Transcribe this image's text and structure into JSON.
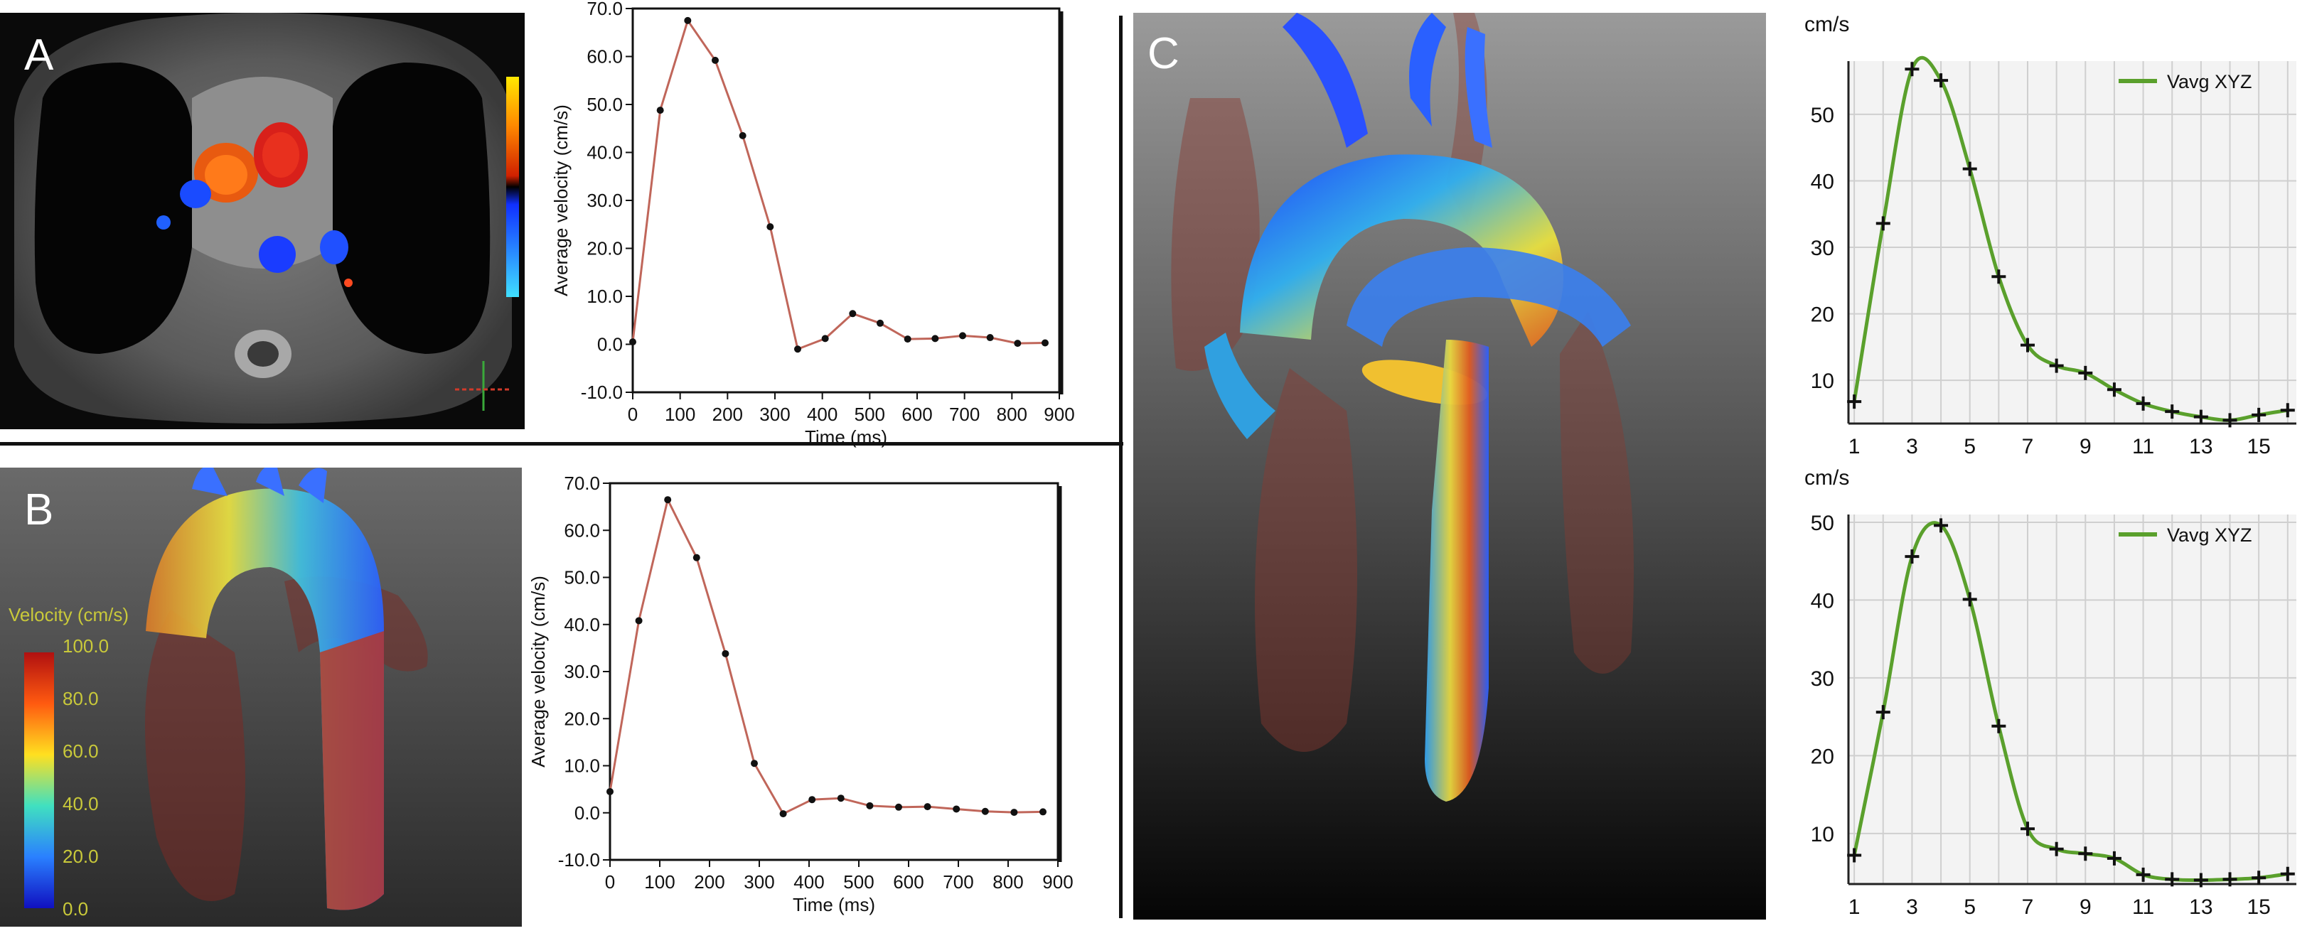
{
  "panels": {
    "A": {
      "letter": "A"
    },
    "B": {
      "letter": "B",
      "colorbar": {
        "title": "Velocity (cm/s)",
        "ticks": [
          "100.0",
          "80.0",
          "60.0",
          "40.0",
          "20.0",
          "0.0"
        ]
      }
    },
    "C": {
      "letter": "C"
    }
  },
  "colors": {
    "line_ab": "#c0665a",
    "marker_ab": "#111111",
    "line_c": "#5aa02c",
    "marker_c": "#111111",
    "grid_c": "#cfcfcf",
    "plot_bg_c": "#f3f3f3"
  },
  "chart_data": [
    {
      "id": "chartA",
      "type": "line",
      "xlabel": "Time (ms)",
      "ylabel": "Average velocity (cm/s)",
      "xlim": [
        0,
        900
      ],
      "ylim": [
        -10,
        70
      ],
      "xticks": [
        0,
        100,
        200,
        300,
        400,
        500,
        600,
        700,
        800,
        900
      ],
      "yticks": [
        -10,
        0,
        10,
        20,
        30,
        40,
        50,
        60,
        70
      ],
      "ytick_labels": [
        "-10.0",
        "0.0",
        "10.0",
        "20.0",
        "30.0",
        "40.0",
        "50.0",
        "60.0",
        "70.0"
      ],
      "grid": false,
      "series": [
        {
          "x": [
            0,
            58,
            116,
            174,
            232,
            290,
            348,
            406,
            464,
            522,
            580,
            638,
            696,
            754,
            812,
            870
          ],
          "y": [
            0.5,
            48.8,
            67.5,
            59.2,
            43.5,
            24.5,
            -1.0,
            1.2,
            6.4,
            4.4,
            1.1,
            1.2,
            1.8,
            1.4,
            0.2,
            0.3
          ]
        }
      ]
    },
    {
      "id": "chartB",
      "type": "line",
      "xlabel": "Time (ms)",
      "ylabel": "Average velocity (cm/s)",
      "xlim": [
        0,
        900
      ],
      "ylim": [
        -10,
        70
      ],
      "xticks": [
        0,
        100,
        200,
        300,
        400,
        500,
        600,
        700,
        800,
        900
      ],
      "yticks": [
        -10,
        0,
        10,
        20,
        30,
        40,
        50,
        60,
        70
      ],
      "ytick_labels": [
        "-10.0",
        "0.0",
        "10.0",
        "20.0",
        "30.0",
        "40.0",
        "50.0",
        "60.0",
        "70.0"
      ],
      "grid": false,
      "series": [
        {
          "x": [
            0,
            58,
            116,
            174,
            232,
            290,
            348,
            406,
            464,
            522,
            580,
            638,
            696,
            754,
            812,
            870
          ],
          "y": [
            4.5,
            40.8,
            66.5,
            54.2,
            33.8,
            10.5,
            -0.2,
            2.8,
            3.1,
            1.5,
            1.2,
            1.3,
            0.8,
            0.3,
            0.1,
            0.2
          ]
        }
      ]
    },
    {
      "id": "chartC1",
      "type": "line",
      "unit_label": "cm/s",
      "legend": "Vavg XYZ",
      "legend_position": "top-right",
      "xlim": [
        0.8,
        16.3
      ],
      "ylim": [
        3.5,
        58
      ],
      "xticks": [
        1,
        3,
        5,
        7,
        9,
        11,
        13,
        15
      ],
      "yticks": [
        10,
        20,
        30,
        40,
        50
      ],
      "grid": true,
      "series": [
        {
          "name": "Vavg XYZ",
          "x": [
            1,
            2,
            3,
            4,
            5,
            6,
            7,
            8,
            9,
            10,
            11,
            12,
            13,
            14,
            15,
            16
          ],
          "y": [
            6.8,
            33.6,
            56.8,
            55.1,
            41.8,
            25.6,
            15.3,
            12.2,
            11.1,
            8.6,
            6.5,
            5.3,
            4.5,
            4.0,
            4.8,
            5.5
          ]
        }
      ]
    },
    {
      "id": "chartC2",
      "type": "line",
      "unit_label": "cm/s",
      "legend": "Vavg XYZ",
      "legend_position": "top-right",
      "xlim": [
        0.8,
        16.3
      ],
      "ylim": [
        3.5,
        51
      ],
      "xticks": [
        1,
        3,
        5,
        7,
        9,
        11,
        13,
        15
      ],
      "yticks": [
        10,
        20,
        30,
        40,
        50
      ],
      "grid": true,
      "series": [
        {
          "name": "Vavg XYZ",
          "x": [
            1,
            2,
            3,
            4,
            5,
            6,
            7,
            8,
            9,
            10,
            11,
            12,
            13,
            14,
            15,
            16
          ],
          "y": [
            7.2,
            25.6,
            45.6,
            49.6,
            40.1,
            23.8,
            10.6,
            8.0,
            7.4,
            6.8,
            4.7,
            4.1,
            4.0,
            4.1,
            4.3,
            4.8
          ]
        }
      ]
    }
  ]
}
